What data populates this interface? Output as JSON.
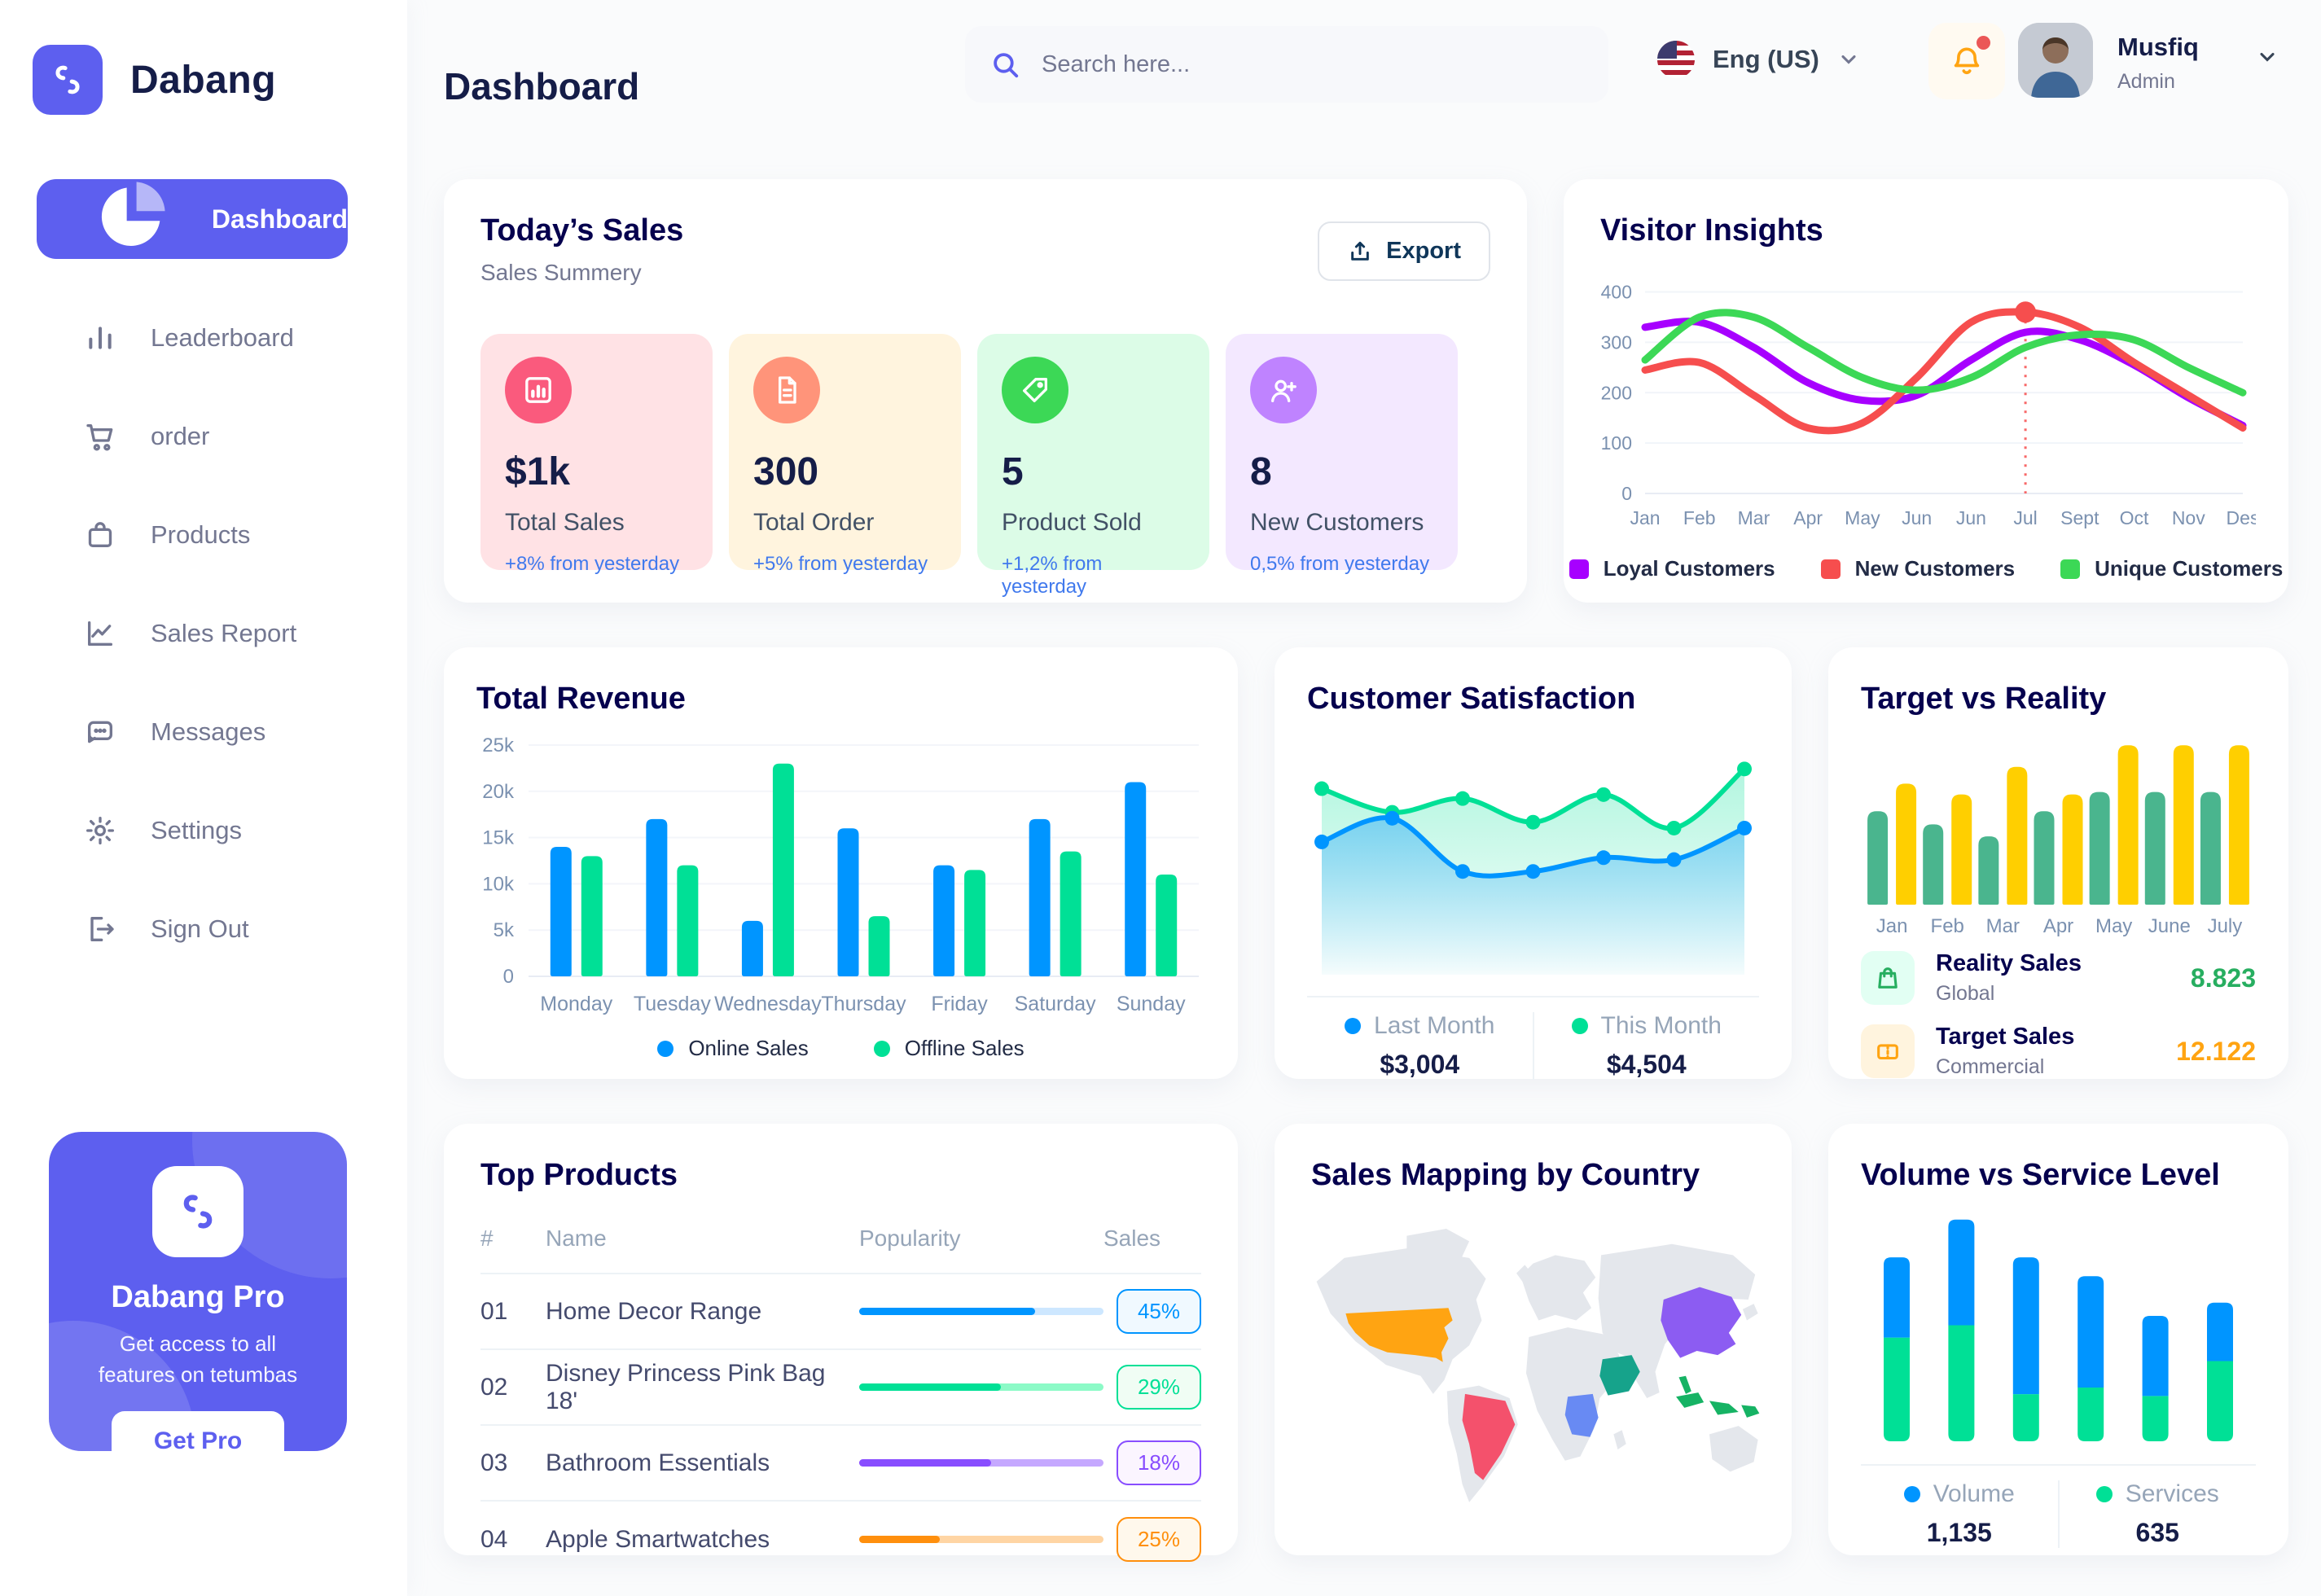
{
  "app": {
    "name": "Dabang"
  },
  "header": {
    "title": "Dashboard",
    "search_placeholder": "Search here...",
    "language": "Eng (US)",
    "user": {
      "name": "Musfiq",
      "role": "Admin"
    }
  },
  "sidebar": {
    "items": [
      {
        "label": "Dashboard",
        "icon": "pie",
        "active": true
      },
      {
        "label": "Leaderboard",
        "icon": "bars",
        "active": false
      },
      {
        "label": "order",
        "icon": "cart",
        "active": false
      },
      {
        "label": "Products",
        "icon": "bag",
        "active": false
      },
      {
        "label": "Sales Report",
        "icon": "chart-line",
        "active": false
      },
      {
        "label": "Messages",
        "icon": "message",
        "active": false
      },
      {
        "label": "Settings",
        "icon": "gear",
        "active": false
      },
      {
        "label": "Sign Out",
        "icon": "signout",
        "active": false
      }
    ],
    "pro": {
      "title": "Dabang Pro",
      "subtitle": "Get access to all features on tetumbas",
      "button": "Get Pro"
    }
  },
  "todays_sales": {
    "title": "Today’s Sales",
    "subtitle": "Sales Summery",
    "export_label": "Export",
    "delta_color": "#4079ED",
    "cards": [
      {
        "value": "$1k",
        "label": "Total Sales",
        "delta": "+8% from yesterday",
        "bg": "#FFE2E5",
        "icon_bg": "#FA5A7D",
        "icon": "chart"
      },
      {
        "value": "300",
        "label": "Total Order",
        "delta": "+5% from yesterday",
        "bg": "#FFF4DE",
        "icon_bg": "#FF947A",
        "icon": "file"
      },
      {
        "value": "5",
        "label": "Product Sold",
        "delta": "+1,2% from yesterday",
        "bg": "#DCFCE7",
        "icon_bg": "#3CD856",
        "icon": "tag"
      },
      {
        "value": "8",
        "label": "New Customers",
        "delta": "0,5% from yesterday",
        "bg": "#F3E8FF",
        "icon_bg": "#BF83FF",
        "icon": "user-plus"
      }
    ]
  },
  "chart_data": [
    {
      "id": "visitor_insights",
      "type": "line",
      "title": "Visitor Insights",
      "x_labels": [
        "Jan",
        "Feb",
        "Mar",
        "Apr",
        "May",
        "Jun",
        "Jun",
        "Jul",
        "Sept",
        "Oct",
        "Nov",
        "Des"
      ],
      "y_ticks": [
        0,
        100,
        200,
        300,
        400
      ],
      "ylim": [
        0,
        430
      ],
      "grid": true,
      "legend_position": "bottom",
      "highlight": {
        "x_index": 7,
        "series": "New Customers",
        "value": 360
      },
      "series": [
        {
          "name": "Loyal Customers",
          "color": "#A700FF",
          "values": [
            330,
            340,
            290,
            220,
            185,
            195,
            265,
            320,
            305,
            255,
            190,
            135
          ]
        },
        {
          "name": "New Customers",
          "color": "#F64E4E",
          "values": [
            245,
            260,
            195,
            130,
            140,
            230,
            340,
            360,
            330,
            260,
            195,
            130
          ]
        },
        {
          "name": "Unique Customers",
          "color": "#3CD856",
          "values": [
            265,
            350,
            350,
            290,
            230,
            205,
            230,
            290,
            315,
            305,
            250,
            200
          ]
        }
      ]
    },
    {
      "id": "total_revenue",
      "type": "bar",
      "title": "Total Revenue",
      "categories": [
        "Monday",
        "Tuesday",
        "Wednesday",
        "Thursday",
        "Friday",
        "Saturday",
        "Sunday"
      ],
      "y_ticks": [
        0,
        5000,
        10000,
        15000,
        20000,
        25000
      ],
      "y_tick_labels": [
        "0",
        "5k",
        "10k",
        "15k",
        "20k",
        "25k"
      ],
      "ylim": [
        0,
        25000
      ],
      "grid": true,
      "legend_position": "bottom",
      "series": [
        {
          "name": "Online Sales",
          "color": "#0095FF",
          "values": [
            14000,
            17000,
            6000,
            16000,
            12000,
            17000,
            21000
          ]
        },
        {
          "name": "Offline Sales",
          "color": "#00E096",
          "values": [
            13000,
            12000,
            23000,
            6500,
            11500,
            13500,
            11000
          ]
        }
      ]
    },
    {
      "id": "customer_satisfaction",
      "type": "area",
      "title": "Customer Satisfaction",
      "ylim": [
        0,
        100
      ],
      "legend_position": "bottom",
      "series": [
        {
          "name": "Last Month",
          "color": "#0095FF",
          "total": "$3,004",
          "values": [
            55,
            67,
            40,
            40,
            47,
            46,
            62
          ]
        },
        {
          "name": "This Month",
          "color": "#00E096",
          "total": "$4,504",
          "values": [
            82,
            70,
            77,
            65,
            79,
            62,
            92
          ]
        }
      ]
    },
    {
      "id": "target_vs_reality",
      "type": "bar",
      "title": "Target vs Reality",
      "categories": [
        "Jan",
        "Feb",
        "Mar",
        "Apr",
        "May",
        "June",
        "July"
      ],
      "ylim": [
        0,
        14
      ],
      "grid": false,
      "series": [
        {
          "name": "Reality Sales",
          "color": "#4AB58E",
          "values": [
            7.8,
            6.7,
            5.7,
            7.8,
            9.4,
            9.4,
            9.4
          ]
        },
        {
          "name": "Target Sales",
          "color": "#FFCF00",
          "values": [
            10.1,
            9.2,
            11.5,
            9.2,
            13.3,
            13.3,
            13.3
          ]
        }
      ],
      "legend": [
        {
          "label": "Reality Sales",
          "sublabel": "Global",
          "value": "8.823",
          "value_color": "#27AE60",
          "chip_bg": "#E2FFF3",
          "icon_color": "#27AE60",
          "icon": "bag"
        },
        {
          "label": "Target Sales",
          "sublabel": "Commercial",
          "value": "12.122",
          "value_color": "#FFA412",
          "chip_bg": "#FFF4DE",
          "icon_color": "#FFA412",
          "icon": "ticket"
        }
      ]
    },
    {
      "id": "volume_vs_service",
      "type": "stacked-bar",
      "title": "Volume vs Service Level",
      "ylim": [
        0,
        240
      ],
      "legend_position": "bottom",
      "series": [
        {
          "name": "Volume",
          "color": "#0095FF",
          "total": "1,135",
          "values": [
            85,
            112,
            145,
            118,
            85,
            62
          ]
        },
        {
          "name": "Services",
          "color": "#00E096",
          "total": "635",
          "values": [
            110,
            123,
            50,
            57,
            48,
            85
          ]
        }
      ]
    }
  ],
  "top_products": {
    "title": "Top Products",
    "columns": [
      "#",
      "Name",
      "Popularity",
      "Sales"
    ],
    "rows": [
      {
        "num": "01",
        "name": "Home Decor Range",
        "popularity": 72,
        "sales": "45%",
        "color": "#0095FF",
        "track": "#CDE7FF",
        "badge_bg": "#F0F9FF"
      },
      {
        "num": "02",
        "name": "Disney Princess Pink Bag 18'",
        "popularity": 58,
        "sales": "29%",
        "color": "#00E096",
        "track": "#8CFAC7",
        "badge_bg": "#F0FDF4"
      },
      {
        "num": "03",
        "name": "Bathroom Essentials",
        "popularity": 54,
        "sales": "18%",
        "color": "#884DFF",
        "track": "#C5A8FF",
        "badge_bg": "#FBF5FF"
      },
      {
        "num": "04",
        "name": "Apple Smartwatches",
        "popularity": 33,
        "sales": "25%",
        "color": "#FF8F0D",
        "track": "#FFD5A4",
        "badge_bg": "#FFF8EC"
      }
    ]
  },
  "sales_map": {
    "title": "Sales Mapping by Country",
    "land_color": "#E4E7EC",
    "countries": [
      {
        "id": "usa",
        "name": "United States",
        "color": "#FFA412"
      },
      {
        "id": "brazil",
        "name": "Brazil",
        "color": "#F4516C"
      },
      {
        "id": "saudi",
        "name": "Saudi Arabia",
        "color": "#16A38B"
      },
      {
        "id": "drc",
        "name": "DR Congo",
        "color": "#688AF3"
      },
      {
        "id": "china",
        "name": "China",
        "color": "#8C5CF2"
      },
      {
        "id": "indonesia",
        "name": "Indonesia",
        "color": "#16B364"
      }
    ]
  }
}
